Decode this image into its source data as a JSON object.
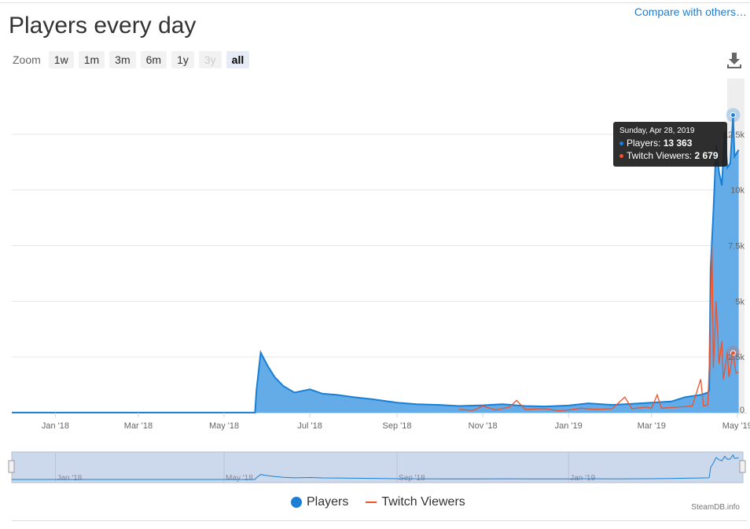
{
  "header": {
    "compare_link": "Compare with others…",
    "title": "Players every day"
  },
  "zoom": {
    "label": "Zoom",
    "buttons": [
      {
        "label": "1w",
        "state": "normal"
      },
      {
        "label": "1m",
        "state": "normal"
      },
      {
        "label": "3m",
        "state": "normal"
      },
      {
        "label": "6m",
        "state": "normal"
      },
      {
        "label": "1y",
        "state": "normal"
      },
      {
        "label": "3y",
        "state": "disabled"
      },
      {
        "label": "all",
        "state": "selected"
      }
    ]
  },
  "icons": {
    "download": "download-icon"
  },
  "tooltip": {
    "date": "Sunday, Apr 28, 2019",
    "players_label": "Players: ",
    "players_value": "13 363",
    "twitch_label": "Twitch Viewers: ",
    "twitch_value": "2 679"
  },
  "legend": {
    "players": "Players",
    "twitch": "Twitch Viewers"
  },
  "credit": "SteamDB.info",
  "colors": {
    "players": "#1a7fd4",
    "players_fill": "#5ba8e6",
    "twitch": "#f0522a"
  },
  "chart_data": {
    "type": "area",
    "title": "Players every day",
    "xlim": [
      "2017-12-01",
      "2019-05-05"
    ],
    "ylim": [
      0,
      15000
    ],
    "yticks": [
      {
        "v": 0,
        "label": "0"
      },
      {
        "v": 2500,
        "label": "2.5k"
      },
      {
        "v": 5000,
        "label": "5k"
      },
      {
        "v": 7500,
        "label": "7.5k"
      },
      {
        "v": 10000,
        "label": "10k"
      },
      {
        "v": 12500,
        "label": "12.5k"
      }
    ],
    "xticks": [
      {
        "d": "2018-01-01",
        "label": "Jan '18"
      },
      {
        "d": "2018-03-01",
        "label": "Mar '18"
      },
      {
        "d": "2018-05-01",
        "label": "May '18"
      },
      {
        "d": "2018-07-01",
        "label": "Jul '18"
      },
      {
        "d": "2018-09-01",
        "label": "Sep '18"
      },
      {
        "d": "2018-11-01",
        "label": "Nov '18"
      },
      {
        "d": "2019-01-01",
        "label": "Jan '19"
      },
      {
        "d": "2019-03-01",
        "label": "Mar '19"
      },
      {
        "d": "2019-05-01",
        "label": "May '19"
      }
    ],
    "navigator_ticks": [
      {
        "d": "2018-01-01",
        "label": "Jan '18"
      },
      {
        "d": "2018-05-01",
        "label": "May '18"
      },
      {
        "d": "2018-09-01",
        "label": "Sep '18"
      },
      {
        "d": "2019-01-01",
        "label": "Jan '19"
      }
    ],
    "series": [
      {
        "name": "Players",
        "points": [
          [
            "2017-12-01",
            5
          ],
          [
            "2018-05-23",
            5
          ],
          [
            "2018-05-24",
            1000
          ],
          [
            "2018-05-27",
            2700
          ],
          [
            "2018-06-01",
            2100
          ],
          [
            "2018-06-06",
            1600
          ],
          [
            "2018-06-12",
            1200
          ],
          [
            "2018-06-20",
            900
          ],
          [
            "2018-07-01",
            1050
          ],
          [
            "2018-07-10",
            850
          ],
          [
            "2018-07-20",
            800
          ],
          [
            "2018-08-01",
            700
          ],
          [
            "2018-08-15",
            600
          ],
          [
            "2018-09-01",
            450
          ],
          [
            "2018-09-15",
            380
          ],
          [
            "2018-10-01",
            350
          ],
          [
            "2018-10-15",
            300
          ],
          [
            "2018-11-01",
            330
          ],
          [
            "2018-11-15",
            380
          ],
          [
            "2018-12-01",
            300
          ],
          [
            "2018-12-15",
            280
          ],
          [
            "2019-01-01",
            320
          ],
          [
            "2019-01-15",
            420
          ],
          [
            "2019-02-01",
            350
          ],
          [
            "2019-02-15",
            400
          ],
          [
            "2019-03-01",
            450
          ],
          [
            "2019-03-15",
            500
          ],
          [
            "2019-03-25",
            700
          ],
          [
            "2019-04-05",
            800
          ],
          [
            "2019-04-10",
            900
          ],
          [
            "2019-04-11",
            1000
          ],
          [
            "2019-04-12",
            6500
          ],
          [
            "2019-04-14",
            9000
          ],
          [
            "2019-04-16",
            12000
          ],
          [
            "2019-04-18",
            10800
          ],
          [
            "2019-04-20",
            10200
          ],
          [
            "2019-04-22",
            12600
          ],
          [
            "2019-04-24",
            11000
          ],
          [
            "2019-04-26",
            11200
          ],
          [
            "2019-04-28",
            13363
          ],
          [
            "2019-04-29",
            11500
          ],
          [
            "2019-05-02",
            11800
          ]
        ]
      },
      {
        "name": "Twitch Viewers",
        "points": [
          [
            "2018-10-15",
            150
          ],
          [
            "2018-10-25",
            100
          ],
          [
            "2018-11-01",
            300
          ],
          [
            "2018-11-10",
            120
          ],
          [
            "2018-11-20",
            250
          ],
          [
            "2018-11-25",
            550
          ],
          [
            "2018-12-01",
            150
          ],
          [
            "2018-12-15",
            180
          ],
          [
            "2018-12-25",
            80
          ],
          [
            "2019-01-01",
            120
          ],
          [
            "2019-01-10",
            200
          ],
          [
            "2019-01-20",
            150
          ],
          [
            "2019-02-01",
            180
          ],
          [
            "2019-02-10",
            700
          ],
          [
            "2019-02-15",
            180
          ],
          [
            "2019-02-25",
            250
          ],
          [
            "2019-03-01",
            200
          ],
          [
            "2019-03-05",
            800
          ],
          [
            "2019-03-08",
            200
          ],
          [
            "2019-03-20",
            250
          ],
          [
            "2019-03-30",
            300
          ],
          [
            "2019-04-05",
            1500
          ],
          [
            "2019-04-07",
            300
          ],
          [
            "2019-04-10",
            350
          ],
          [
            "2019-04-11",
            2000
          ],
          [
            "2019-04-13",
            7500
          ],
          [
            "2019-04-14",
            2000
          ],
          [
            "2019-04-16",
            5000
          ],
          [
            "2019-04-18",
            2200
          ],
          [
            "2019-04-20",
            3200
          ],
          [
            "2019-04-21",
            1500
          ],
          [
            "2019-04-24",
            2700
          ],
          [
            "2019-04-25",
            1600
          ],
          [
            "2019-04-28",
            2679
          ],
          [
            "2019-04-30",
            1800
          ],
          [
            "2019-05-02",
            1800
          ]
        ]
      }
    ]
  }
}
